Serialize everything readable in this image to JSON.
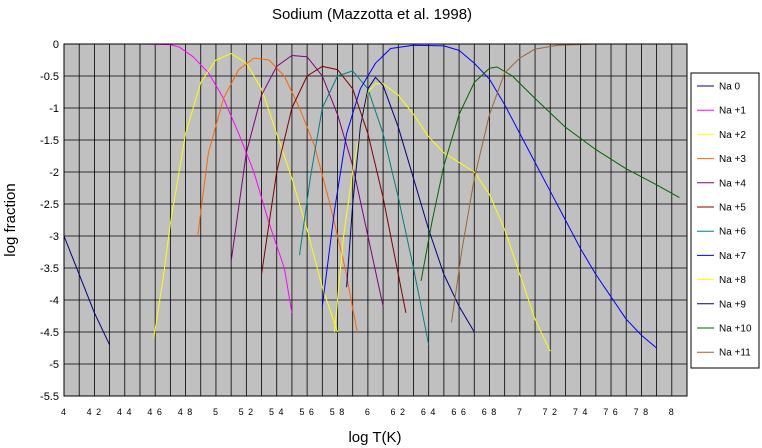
{
  "chart_data": {
    "type": "line",
    "title": "Sodium (Mazzotta et al. 1998)",
    "xlabel": "log T(K)",
    "ylabel": "log fraction",
    "xlim": [
      4,
      8.1
    ],
    "ylim": [
      -5.5,
      0
    ],
    "xticks": [
      4,
      4.2,
      4.4,
      4.6,
      4.8,
      5,
      5.2,
      5.4,
      5.6,
      5.8,
      6,
      6.2,
      6.4,
      6.6,
      6.8,
      7,
      7.2,
      7.4,
      7.6,
      7.8,
      8
    ],
    "xtick_labels": [
      "4",
      "4 2",
      "4 4",
      "4 6",
      "4 8",
      "5",
      "5 2",
      "5 4",
      "5 6",
      "5 8",
      "6",
      "6 2",
      "6 4",
      "6 6",
      "6 8",
      "7",
      "7 2",
      "7 4",
      "7 6",
      "7 8",
      "8"
    ],
    "yticks": [
      0,
      -0.5,
      -1,
      -1.5,
      -2,
      -2.5,
      -3,
      -3.5,
      -4,
      -4.5,
      -5,
      -5.5
    ],
    "ytick_labels": [
      "0",
      "-0.5",
      "-1",
      "-1.5",
      "-2",
      "-2.5",
      "-3",
      "-3.5",
      "-4",
      "-4.5",
      "-5",
      "-5.5"
    ],
    "grid": true,
    "legend_position": "right",
    "series": [
      {
        "name": "Na  0",
        "color": "#000080",
        "points": [
          [
            4.0,
            -3.0
          ],
          [
            4.1,
            -3.6
          ],
          [
            4.2,
            -4.2
          ],
          [
            4.3,
            -4.7
          ]
        ]
      },
      {
        "name": "Na +1",
        "color": "#ff00ff",
        "points": [
          [
            4.0,
            0
          ],
          [
            4.5,
            0
          ],
          [
            4.7,
            -0.01
          ],
          [
            4.76,
            -0.05
          ],
          [
            4.85,
            -0.2
          ],
          [
            4.95,
            -0.45
          ],
          [
            5.05,
            -0.85
          ],
          [
            5.15,
            -1.4
          ],
          [
            5.25,
            -2.0
          ],
          [
            5.35,
            -2.8
          ],
          [
            5.45,
            -3.5
          ],
          [
            5.5,
            -4.2
          ]
        ]
      },
      {
        "name": "Na +2",
        "color": "#ffff00",
        "points": [
          [
            4.59,
            -4.6
          ],
          [
            4.65,
            -3.7
          ],
          [
            4.7,
            -2.8
          ],
          [
            4.8,
            -1.4
          ],
          [
            4.9,
            -0.6
          ],
          [
            5.0,
            -0.25
          ],
          [
            5.1,
            -0.15
          ],
          [
            5.2,
            -0.3
          ],
          [
            5.3,
            -0.7
          ],
          [
            5.4,
            -1.4
          ],
          [
            5.5,
            -2.1
          ],
          [
            5.6,
            -2.9
          ],
          [
            5.7,
            -3.8
          ],
          [
            5.8,
            -4.5
          ]
        ]
      },
      {
        "name": "Na +3",
        "color": "#ff6600",
        "points": [
          [
            4.88,
            -3.0
          ],
          [
            4.95,
            -1.7
          ],
          [
            5.05,
            -0.85
          ],
          [
            5.15,
            -0.4
          ],
          [
            5.25,
            -0.22
          ],
          [
            5.35,
            -0.25
          ],
          [
            5.45,
            -0.5
          ],
          [
            5.55,
            -1.0
          ],
          [
            5.65,
            -1.6
          ],
          [
            5.75,
            -2.5
          ],
          [
            5.85,
            -3.5
          ],
          [
            5.93,
            -4.5
          ]
        ]
      },
      {
        "name": "Na +4",
        "color": "#800080",
        "points": [
          [
            5.1,
            -3.4
          ],
          [
            5.2,
            -1.7
          ],
          [
            5.3,
            -0.8
          ],
          [
            5.4,
            -0.35
          ],
          [
            5.5,
            -0.18
          ],
          [
            5.6,
            -0.2
          ],
          [
            5.7,
            -0.5
          ],
          [
            5.8,
            -1.1
          ],
          [
            5.9,
            -1.9
          ],
          [
            6.0,
            -3.0
          ],
          [
            6.1,
            -4.1
          ]
        ]
      },
      {
        "name": "Na +5",
        "color": "#800000",
        "points": [
          [
            5.3,
            -3.6
          ],
          [
            5.4,
            -2.0
          ],
          [
            5.5,
            -1.0
          ],
          [
            5.6,
            -0.5
          ],
          [
            5.7,
            -0.35
          ],
          [
            5.8,
            -0.4
          ],
          [
            5.9,
            -0.7
          ],
          [
            6.0,
            -1.4
          ],
          [
            6.1,
            -2.4
          ],
          [
            6.2,
            -3.6
          ],
          [
            6.25,
            -4.2
          ]
        ]
      },
      {
        "name": "Na +6",
        "color": "#008080",
        "points": [
          [
            5.55,
            -3.3
          ],
          [
            5.62,
            -2.1
          ],
          [
            5.7,
            -1.0
          ],
          [
            5.8,
            -0.5
          ],
          [
            5.9,
            -0.42
          ],
          [
            6.0,
            -0.7
          ],
          [
            6.1,
            -1.4
          ],
          [
            6.2,
            -2.4
          ],
          [
            6.3,
            -3.5
          ],
          [
            6.4,
            -4.7
          ]
        ]
      },
      {
        "name": "Na +7",
        "color": "#0000ff",
        "points": [
          [
            5.7,
            -4.1
          ],
          [
            5.78,
            -2.6
          ],
          [
            5.86,
            -1.4
          ],
          [
            5.95,
            -0.7
          ],
          [
            6.05,
            -0.3
          ],
          [
            6.15,
            -0.07
          ],
          [
            6.3,
            -0.02
          ],
          [
            6.5,
            -0.03
          ],
          [
            6.6,
            -0.1
          ],
          [
            6.7,
            -0.3
          ],
          [
            6.8,
            -0.55
          ],
          [
            6.9,
            -0.95
          ],
          [
            7.0,
            -1.4
          ],
          [
            7.1,
            -1.85
          ],
          [
            7.2,
            -2.3
          ],
          [
            7.3,
            -2.75
          ],
          [
            7.4,
            -3.2
          ],
          [
            7.5,
            -3.6
          ],
          [
            7.6,
            -3.95
          ],
          [
            7.7,
            -4.3
          ],
          [
            7.8,
            -4.55
          ],
          [
            7.9,
            -4.75
          ]
        ]
      },
      {
        "name": "Na +8",
        "color": "#ffff00",
        "points": [
          [
            5.78,
            -4.5
          ],
          [
            5.84,
            -3.0
          ],
          [
            5.9,
            -2.0
          ],
          [
            5.96,
            -1.2
          ],
          [
            6.0,
            -0.75
          ],
          [
            6.05,
            -0.62
          ],
          [
            6.1,
            -0.62
          ],
          [
            6.2,
            -0.8
          ],
          [
            6.3,
            -1.1
          ],
          [
            6.4,
            -1.45
          ],
          [
            6.5,
            -1.7
          ],
          [
            6.6,
            -1.85
          ],
          [
            6.7,
            -2.0
          ],
          [
            6.8,
            -2.35
          ],
          [
            6.9,
            -2.9
          ],
          [
            7.0,
            -3.6
          ],
          [
            7.1,
            -4.3
          ],
          [
            7.2,
            -4.8
          ]
        ]
      },
      {
        "name": "Na +9",
        "color": "#000080",
        "points": [
          [
            5.86,
            -3.8
          ],
          [
            5.9,
            -2.5
          ],
          [
            5.95,
            -1.3
          ],
          [
            6.0,
            -0.7
          ],
          [
            6.05,
            -0.52
          ],
          [
            6.1,
            -0.65
          ],
          [
            6.2,
            -1.3
          ],
          [
            6.3,
            -2.1
          ],
          [
            6.4,
            -2.9
          ],
          [
            6.5,
            -3.6
          ],
          [
            6.6,
            -4.1
          ],
          [
            6.7,
            -4.5
          ]
        ]
      },
      {
        "name": "Na +10",
        "color": "#006600",
        "points": [
          [
            6.35,
            -3.7
          ],
          [
            6.42,
            -2.8
          ],
          [
            6.5,
            -1.9
          ],
          [
            6.6,
            -1.1
          ],
          [
            6.7,
            -0.6
          ],
          [
            6.8,
            -0.38
          ],
          [
            6.85,
            -0.36
          ],
          [
            6.95,
            -0.5
          ],
          [
            7.1,
            -0.85
          ],
          [
            7.3,
            -1.3
          ],
          [
            7.5,
            -1.65
          ],
          [
            7.7,
            -1.95
          ],
          [
            7.9,
            -2.2
          ],
          [
            8.05,
            -2.4
          ]
        ]
      },
      {
        "name": "Na +11",
        "color": "#996633",
        "points": [
          [
            6.55,
            -4.35
          ],
          [
            6.62,
            -3.2
          ],
          [
            6.7,
            -2.1
          ],
          [
            6.8,
            -1.1
          ],
          [
            6.9,
            -0.45
          ],
          [
            7.0,
            -0.22
          ],
          [
            7.1,
            -0.08
          ],
          [
            7.25,
            -0.02
          ],
          [
            7.5,
            0
          ],
          [
            8.1,
            0
          ]
        ]
      }
    ]
  }
}
